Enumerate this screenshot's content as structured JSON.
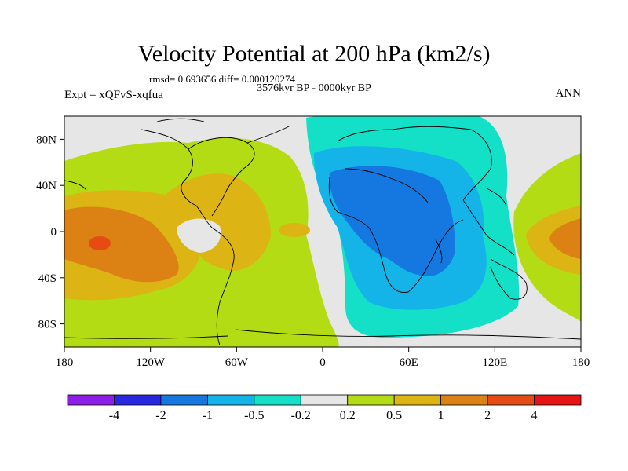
{
  "title": "Velocity Potential at 200 hPa (km2/s)",
  "stats": "rmsd= 0.693656 diff= 0.000120274",
  "period": "3576kyr BP - 0000kyr BP",
  "experiment": "Expt = xQFvS-xqfua",
  "season": "ANN",
  "map": {
    "lat_ticks": [
      "80N",
      "40N",
      "0",
      "40S",
      "80S"
    ],
    "lon_ticks": [
      "180",
      "120W",
      "60W",
      "0",
      "60E",
      "120E",
      "180"
    ]
  },
  "colorbar": {
    "colors": [
      "#8d1ee8",
      "#2828e0",
      "#1478e0",
      "#14b4e8",
      "#14e0c8",
      "#e6e6e6",
      "#b4dc14",
      "#dcb414",
      "#dc8214",
      "#e64b14",
      "#e61414"
    ],
    "labels": [
      "-4",
      "-2",
      "-1",
      "-0.5",
      "-0.2",
      "0.2",
      "0.5",
      "1",
      "2",
      "4"
    ]
  }
}
